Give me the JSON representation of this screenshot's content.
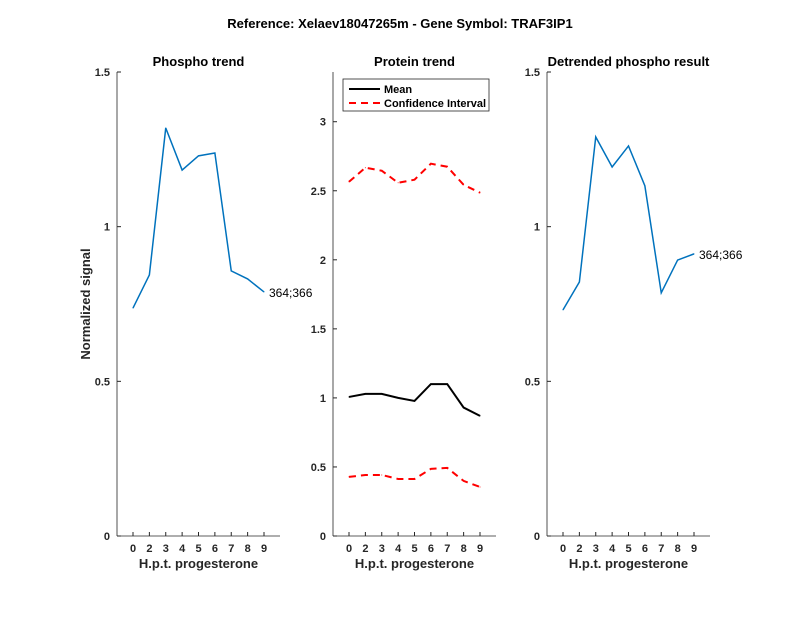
{
  "figure_title": "Reference:  Xelaev18047265m - Gene Symbol:  TRAF3IP1",
  "chart_data": [
    {
      "type": "line",
      "title": "Phospho trend",
      "xlabel": "H.p.t. progesterone",
      "ylabel": "Normalized signal",
      "categories": [
        "0",
        "2",
        "3",
        "4",
        "5",
        "6",
        "7",
        "8",
        "9"
      ],
      "ylim": [
        0,
        1.5
      ],
      "yticks": [
        0,
        0.5,
        1,
        1.5
      ],
      "ytick_labels": [
        "0",
        "0.5",
        "1",
        "1.5"
      ],
      "series": [
        {
          "name": "364;366",
          "color": "#0072BD",
          "dashed": false,
          "values": [
            0.737,
            0.844,
            1.319,
            1.183,
            1.229,
            1.238,
            0.857,
            0.831,
            0.789
          ]
        }
      ],
      "annotation": "364;366"
    },
    {
      "type": "line",
      "title": "Protein trend",
      "xlabel": "H.p.t. progesterone",
      "ylabel": "",
      "categories": [
        "0",
        "2",
        "3",
        "4",
        "5",
        "6",
        "7",
        "8",
        "9"
      ],
      "ylim": [
        0,
        3.36
      ],
      "yticks": [
        0,
        0.5,
        1,
        1.5,
        2,
        2.5,
        3
      ],
      "ytick_labels": [
        "0",
        "0.5",
        "1",
        "1.5",
        "2",
        "2.5",
        "3"
      ],
      "legend": {
        "placement": "top",
        "entries": [
          "Mean",
          "Confidence Interval"
        ]
      },
      "series": [
        {
          "name": "Mean",
          "color": "#000000",
          "dashed": false,
          "values": [
            1.007,
            1.029,
            1.029,
            1.0,
            0.978,
            1.1,
            1.1,
            0.93,
            0.87
          ]
        },
        {
          "name": "Confidence Interval (upper)",
          "color": "#FF0000",
          "dashed": true,
          "values": [
            2.565,
            2.667,
            2.645,
            2.558,
            2.58,
            2.696,
            2.674,
            2.543,
            2.486
          ]
        },
        {
          "name": "Confidence Interval (lower)",
          "color": "#FF0000",
          "dashed": true,
          "values": [
            0.428,
            0.442,
            0.442,
            0.413,
            0.413,
            0.486,
            0.493,
            0.399,
            0.355
          ]
        }
      ]
    },
    {
      "type": "line",
      "title": "Detrended phospho result",
      "xlabel": "H.p.t. progesterone",
      "ylabel": "",
      "categories": [
        "0",
        "2",
        "3",
        "4",
        "5",
        "6",
        "7",
        "8",
        "9"
      ],
      "ylim": [
        0,
        1.5
      ],
      "yticks": [
        0,
        0.5,
        1,
        1.5
      ],
      "ytick_labels": [
        "0",
        "0.5",
        "1",
        "1.5"
      ],
      "series": [
        {
          "name": "364;366",
          "color": "#0072BD",
          "dashed": false,
          "values": [
            0.731,
            0.821,
            1.29,
            1.193,
            1.261,
            1.132,
            0.786,
            0.892,
            0.912
          ]
        }
      ],
      "annotation": "364;366"
    }
  ]
}
